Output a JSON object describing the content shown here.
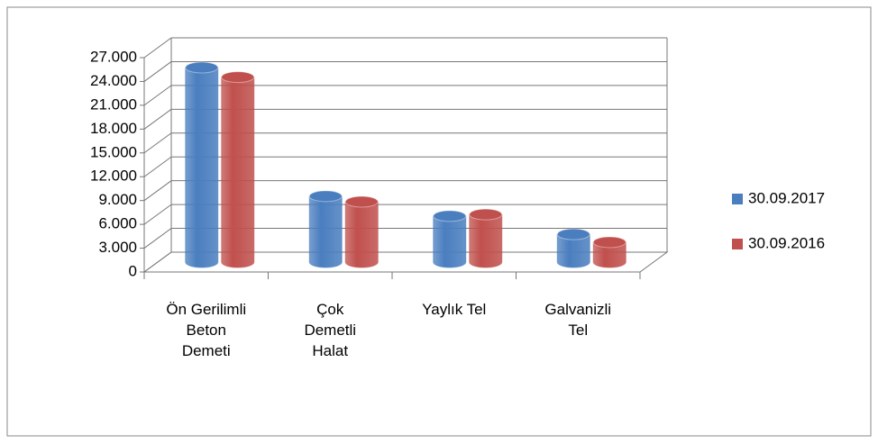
{
  "chart_data": {
    "type": "bar3d",
    "categories": [
      "Ön Gerilimli Beton Demeti",
      "Çok Demetli Halat",
      "Yaylık Tel",
      "Galvanizli Tel"
    ],
    "series": [
      {
        "name": "30.09.2017",
        "color": "#4a7ebf",
        "values": [
          24500,
          8300,
          5800,
          3500
        ]
      },
      {
        "name": "30.09.2016",
        "color": "#c0504d",
        "values": [
          23300,
          7600,
          6000,
          2500
        ]
      }
    ],
    "ylim": [
      0,
      27000
    ],
    "yticks": [
      0,
      {
        "value": 3000,
        "label": "3.000"
      },
      {
        "value": 6000,
        "label": "6.000"
      },
      {
        "value": 9000,
        "label": "9.000"
      },
      {
        "value": 12000,
        "label": "12.000"
      },
      {
        "value": 15000,
        "label": "15.000"
      },
      {
        "value": 18000,
        "label": "18.000"
      },
      {
        "value": 21000,
        "label": "21.000"
      },
      {
        "value": 24000,
        "label": "24.000"
      },
      {
        "value": 27000,
        "label": "27.000"
      }
    ],
    "grid": true,
    "legend": "right"
  }
}
